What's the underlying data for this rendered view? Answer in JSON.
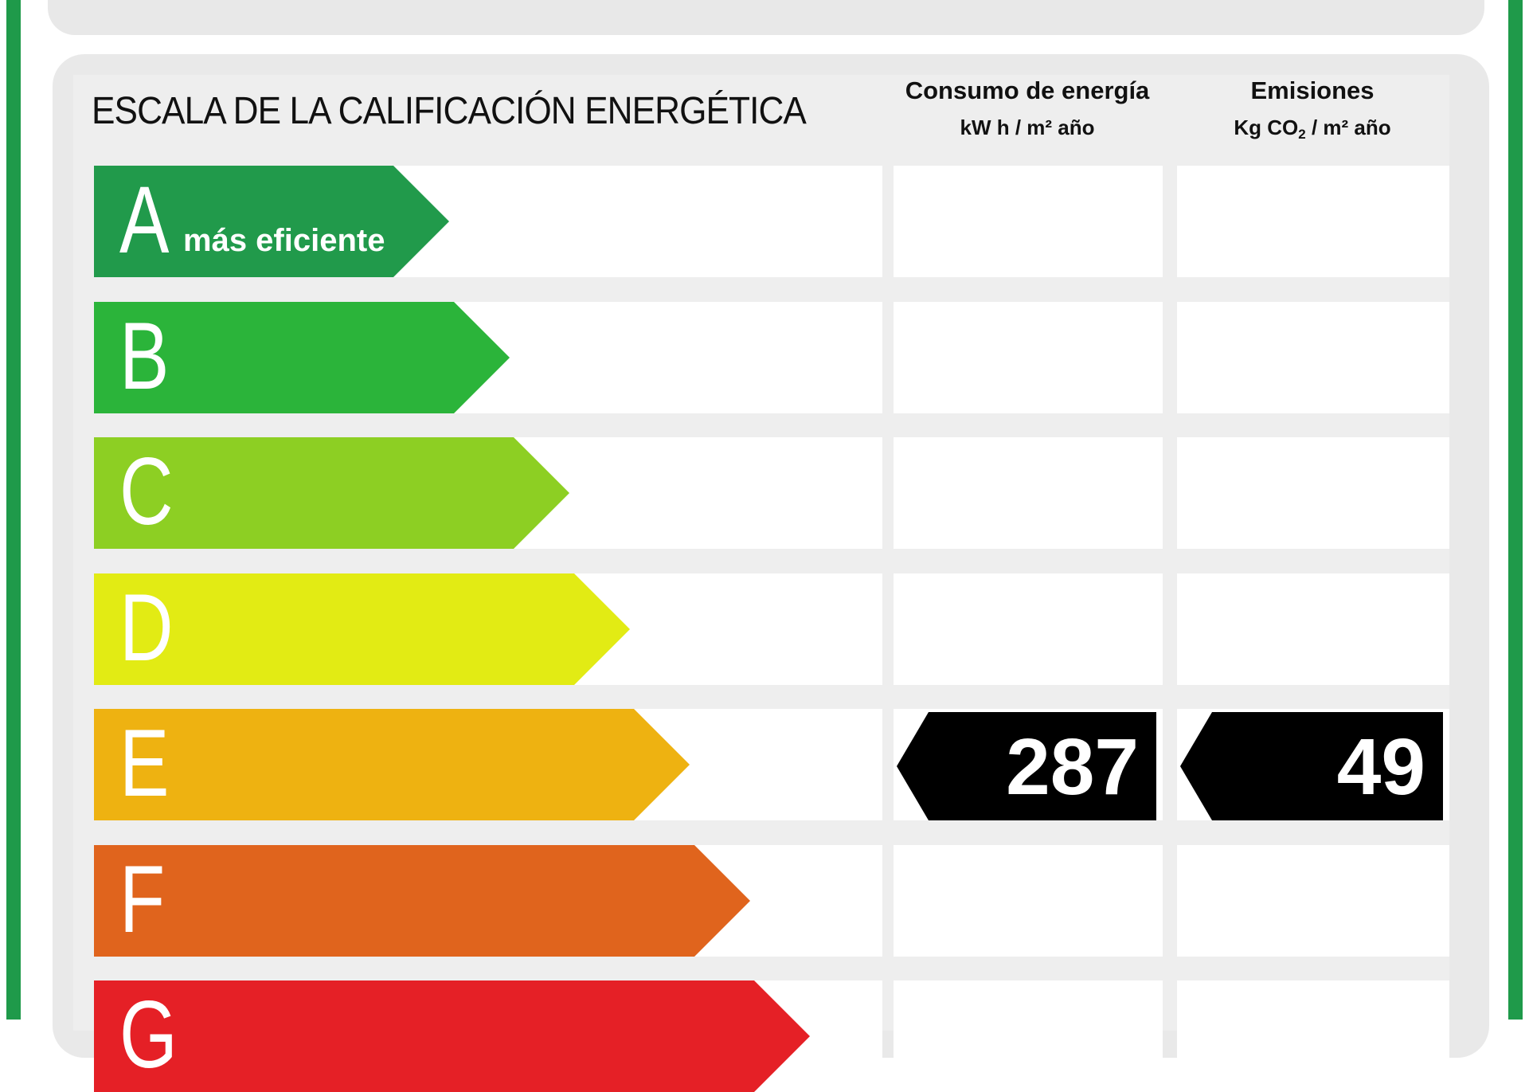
{
  "colors": {
    "frame": "#1f9a4a",
    "panel": "#e9e9e9",
    "marker": "#000000"
  },
  "header": {
    "title": "ESCALA DE LA CALIFICACIÓN ENERGÉTICA",
    "consumption": {
      "title": "Consumo de energía",
      "unit": "kW h / m² año"
    },
    "emissions": {
      "title": "Emisiones",
      "unit_prefix": "Kg CO",
      "unit_sub": "2",
      "unit_suffix": " / m² año"
    }
  },
  "classes": [
    {
      "letter": "A",
      "sub": "más eficiente",
      "color": "#219a4b"
    },
    {
      "letter": "B",
      "sub": "",
      "color": "#2bb43a"
    },
    {
      "letter": "C",
      "sub": "",
      "color": "#8dcf23"
    },
    {
      "letter": "D",
      "sub": "",
      "color": "#e2eb14"
    },
    {
      "letter": "E",
      "sub": "",
      "color": "#eeb211"
    },
    {
      "letter": "F",
      "sub": "",
      "color": "#e0641d"
    },
    {
      "letter": "G",
      "sub": "",
      "color": "#e52026"
    }
  ],
  "rating": {
    "class": "E",
    "consumption_value": "287",
    "emissions_value": "49"
  }
}
